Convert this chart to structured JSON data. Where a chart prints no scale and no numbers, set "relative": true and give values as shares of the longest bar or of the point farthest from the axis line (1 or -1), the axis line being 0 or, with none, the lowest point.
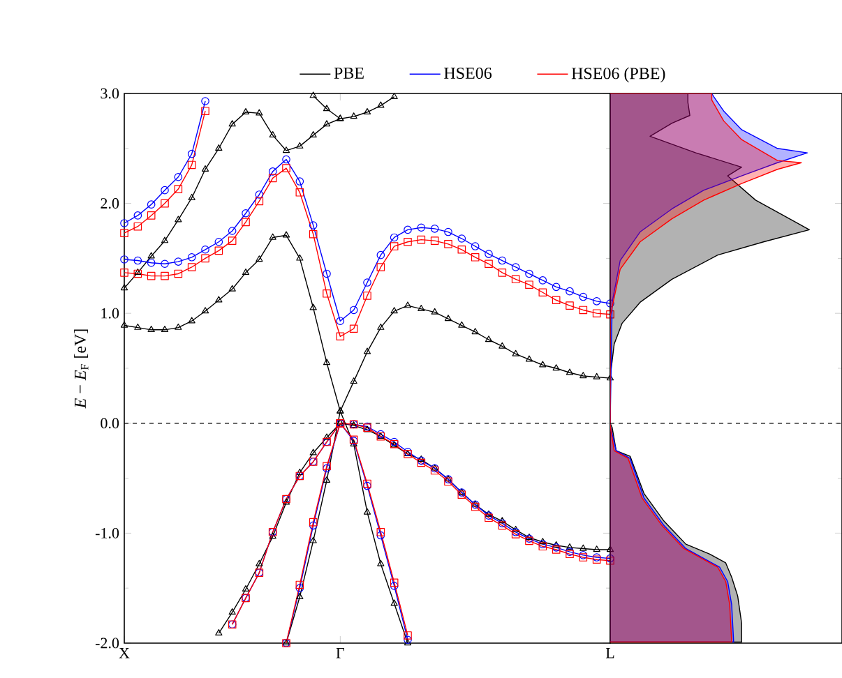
{
  "chart_data": [
    {
      "type": "line",
      "ylim": [
        -2,
        3
      ],
      "categories": [
        "X",
        null,
        null,
        null,
        null,
        null,
        null,
        null,
        null,
        null,
        null,
        null,
        null,
        null,
        null,
        null,
        "Γ",
        null,
        null,
        null,
        null,
        null,
        null,
        null,
        null,
        null,
        null,
        null,
        null,
        null,
        null,
        null,
        null,
        null,
        null,
        null,
        "L"
      ],
      "yticks": [
        {
          "value": -2,
          "label": "-2.0"
        },
        {
          "value": -1,
          "label": "-1.0"
        },
        {
          "value": 0,
          "label": "0.0"
        },
        {
          "value": 1,
          "label": "1.0"
        },
        {
          "value": 2,
          "label": "2.0"
        },
        {
          "value": 3,
          "label": "3.0"
        }
      ],
      "ylabel": "*E* − *E*$_{F}$ [eV]",
      "legend": "top",
      "ref_lines": [
        {
          "axis": "y",
          "value": 0,
          "line_style": "dashed",
          "color": "#000000"
        }
      ],
      "series": [
        {
          "name": "PBE",
          "color": "#000000",
          "marker": "triangle",
          "values": [
            0.89,
            0.87,
            0.85,
            0.85,
            0.87,
            0.93,
            1.02,
            1.12,
            1.22,
            1.37,
            1.49,
            1.69,
            1.71,
            1.5,
            1.05,
            0.55,
            0.11,
            -0.19,
            -0.81,
            -1.28,
            -1.64,
            -2.0,
            null,
            null,
            null,
            null,
            null,
            null,
            null,
            null,
            null,
            null,
            null,
            null,
            null,
            null,
            null
          ]
        },
        {
          "color": "#000000",
          "marker": "triangle",
          "values": [
            null,
            null,
            null,
            null,
            null,
            null,
            null,
            null,
            null,
            null,
            null,
            null,
            -2.0,
            -1.58,
            -1.07,
            -0.52,
            0.11,
            0.38,
            0.65,
            0.87,
            1.02,
            1.07,
            1.04,
            1.01,
            0.95,
            0.89,
            0.83,
            0.76,
            0.7,
            0.63,
            0.58,
            0.53,
            0.5,
            0.46,
            0.43,
            0.42,
            0.41
          ]
        },
        {
          "color": "#000000",
          "marker": "triangle",
          "values": [
            null,
            null,
            null,
            null,
            null,
            null,
            null,
            -1.91,
            -1.72,
            -1.51,
            -1.28,
            -1.03,
            -0.72,
            -0.45,
            -0.27,
            -0.13,
            0,
            -0.02,
            -0.06,
            -0.12,
            -0.2,
            -0.28,
            -0.33,
            -0.41,
            -0.51,
            -0.63,
            -0.74,
            -0.83,
            -0.89,
            -0.97,
            -1.04,
            -1.08,
            -1.11,
            -1.13,
            -1.14,
            -1.15,
            -1.15
          ]
        },
        {
          "color": "#000000",
          "marker": "triangle",
          "values": [
            1.23,
            1.37,
            1.52,
            1.66,
            1.85,
            2.05,
            2.31,
            2.5,
            2.72,
            2.83,
            2.82,
            2.62,
            2.48,
            2.52,
            2.62,
            2.72,
            2.77,
            2.79,
            2.83,
            2.89,
            2.97,
            null,
            null,
            null,
            null,
            null,
            null,
            null,
            null,
            null,
            null,
            null,
            null,
            null,
            null,
            null,
            null
          ]
        },
        {
          "color": "#000000",
          "marker": "triangle",
          "values": [
            null,
            null,
            null,
            null,
            null,
            null,
            null,
            null,
            null,
            null,
            null,
            null,
            null,
            null,
            2.98,
            2.86,
            2.77,
            null,
            null,
            null,
            null,
            null,
            null,
            null,
            null,
            null,
            null,
            null,
            null,
            null,
            null,
            null,
            null,
            null,
            null,
            null,
            null
          ]
        },
        {
          "name": "HSE06",
          "color": "#0000ff",
          "marker": "circle",
          "values": [
            1.49,
            1.48,
            1.46,
            1.45,
            1.47,
            1.51,
            1.58,
            1.65,
            1.75,
            1.91,
            2.08,
            2.29,
            2.4,
            2.2,
            1.8,
            1.36,
            0.93,
            1.03,
            1.28,
            1.53,
            1.69,
            1.76,
            1.78,
            1.77,
            1.74,
            1.68,
            1.61,
            1.54,
            1.48,
            1.42,
            1.36,
            1.3,
            1.24,
            1.2,
            1.15,
            1.11,
            1.09
          ]
        },
        {
          "color": "#0000ff",
          "marker": "circle",
          "values": [
            1.82,
            1.89,
            1.99,
            2.12,
            2.24,
            2.45,
            2.93,
            null,
            null,
            null,
            null,
            null,
            null,
            null,
            null,
            null,
            null,
            null,
            null,
            null,
            null,
            null,
            null,
            null,
            null,
            null,
            null,
            null,
            null,
            null,
            null,
            null,
            null,
            null,
            null,
            null,
            null
          ]
        },
        {
          "color": "#0000ff",
          "marker": "circle",
          "values": [
            null,
            null,
            null,
            null,
            null,
            null,
            null,
            null,
            -1.83,
            -1.59,
            -1.36,
            -0.99,
            -0.69,
            -0.48,
            -0.35,
            -0.17,
            0,
            -0.01,
            -0.03,
            -0.1,
            -0.17,
            -0.26,
            -0.34,
            -0.41,
            -0.51,
            -0.63,
            -0.74,
            -0.84,
            -0.91,
            -0.99,
            -1.05,
            -1.1,
            -1.13,
            -1.17,
            -1.2,
            -1.22,
            -1.23
          ]
        },
        {
          "color": "#0000ff",
          "marker": "circle",
          "values": [
            null,
            null,
            null,
            null,
            null,
            null,
            null,
            null,
            null,
            null,
            null,
            null,
            -2.0,
            -1.5,
            -0.93,
            -0.41,
            0,
            null,
            null,
            null,
            null,
            null,
            null,
            null,
            null,
            null,
            null,
            null,
            null,
            null,
            null,
            null,
            null,
            null,
            null,
            null,
            null
          ]
        },
        {
          "color": "#0000ff",
          "marker": "circle",
          "values": [
            null,
            null,
            null,
            null,
            null,
            null,
            null,
            null,
            null,
            null,
            null,
            null,
            null,
            null,
            null,
            null,
            0,
            -0.16,
            -0.57,
            -1.02,
            -1.48,
            -1.97,
            null,
            null,
            null,
            null,
            null,
            null,
            null,
            null,
            null,
            null,
            null,
            null,
            null,
            null,
            null
          ]
        },
        {
          "name": "HSE06 (PBE)",
          "color": "#ff0000",
          "marker": "square",
          "values": [
            1.37,
            1.36,
            1.34,
            1.34,
            1.36,
            1.42,
            1.5,
            1.57,
            1.66,
            1.83,
            2.02,
            2.23,
            2.32,
            2.1,
            1.72,
            1.18,
            0.79,
            0.86,
            1.16,
            1.42,
            1.61,
            1.65,
            1.67,
            1.66,
            1.63,
            1.58,
            1.51,
            1.45,
            1.37,
            1.31,
            1.26,
            1.19,
            1.12,
            1.07,
            1.03,
            1.0,
            0.99
          ]
        },
        {
          "color": "#ff0000",
          "marker": "square",
          "values": [
            1.73,
            1.79,
            1.89,
            2.0,
            2.13,
            2.35,
            2.84,
            null,
            null,
            null,
            null,
            null,
            null,
            null,
            null,
            null,
            null,
            null,
            null,
            null,
            null,
            null,
            null,
            null,
            null,
            null,
            null,
            null,
            null,
            null,
            null,
            null,
            null,
            null,
            null,
            null,
            null
          ]
        },
        {
          "color": "#ff0000",
          "marker": "square",
          "values": [
            null,
            null,
            null,
            null,
            null,
            null,
            null,
            null,
            -1.83,
            -1.59,
            -1.36,
            -0.99,
            -0.69,
            -0.48,
            -0.35,
            -0.17,
            0,
            -0.01,
            -0.04,
            -0.12,
            -0.19,
            -0.28,
            -0.36,
            -0.43,
            -0.53,
            -0.65,
            -0.76,
            -0.86,
            -0.93,
            -1.01,
            -1.07,
            -1.12,
            -1.15,
            -1.19,
            -1.22,
            -1.24,
            -1.25
          ]
        },
        {
          "color": "#ff0000",
          "marker": "square",
          "values": [
            null,
            null,
            null,
            null,
            null,
            null,
            null,
            null,
            null,
            null,
            null,
            null,
            -2.0,
            -1.47,
            -0.9,
            -0.39,
            0,
            null,
            null,
            null,
            null,
            null,
            null,
            null,
            null,
            null,
            null,
            null,
            null,
            null,
            null,
            null,
            null,
            null,
            null,
            null,
            null
          ]
        },
        {
          "color": "#ff0000",
          "marker": "square",
          "values": [
            null,
            null,
            null,
            null,
            null,
            null,
            null,
            null,
            null,
            null,
            null,
            null,
            null,
            null,
            null,
            null,
            0,
            -0.15,
            -0.55,
            -0.99,
            -1.45,
            -1.93,
            null,
            null,
            null,
            null,
            null,
            null,
            null,
            null,
            null,
            null,
            null,
            null,
            null,
            null,
            null
          ]
        }
      ]
    },
    {
      "type": "area",
      "orientation": "horizontal",
      "relative": true,
      "ylim": [
        -2,
        3
      ],
      "tick_labels": false,
      "yticks": [
        {
          "value": -1,
          "label": null
        },
        {
          "value": 0,
          "label": null
        },
        {
          "value": 1,
          "label": null
        },
        {
          "value": 2,
          "label": null
        }
      ],
      "ref_lines": [
        {
          "axis": "y",
          "value": 0,
          "line_style": "dashed",
          "color": "#000000"
        }
      ],
      "series": [
        {
          "color": "#000000",
          "x": [
            -1.99,
            -1.82,
            -1.57,
            -1.4,
            -1.27,
            -1.19,
            -1.1,
            -0.89,
            -0.64,
            -0.3,
            -0.25,
            -0.04,
            0,
            0.42,
            0.72,
            0.91,
            1.1,
            1.31,
            1.53,
            1.65,
            1.76,
            1.82,
            2.03,
            2.25,
            2.33,
            2.46,
            2.61,
            2.73,
            2.8,
            2.92,
            3.0
          ],
          "values": [
            0.66,
            0.66,
            0.64,
            0.61,
            0.58,
            0.5,
            0.38,
            0.27,
            0.17,
            0.1,
            0.03,
            0.01,
            0,
            0,
            0.02,
            0.06,
            0.15,
            0.31,
            0.54,
            0.77,
            1.0,
            0.94,
            0.73,
            0.59,
            0.66,
            0.43,
            0.2,
            0.31,
            0.4,
            0.39,
            0.39
          ]
        },
        {
          "color": "#0000ff",
          "x": [
            -1.99,
            -1.65,
            -1.44,
            -1.31,
            -1.23,
            -1.14,
            -0.93,
            -0.68,
            -0.32,
            -0.25,
            -0.02,
            0,
            1.1,
            1.48,
            1.74,
            1.95,
            2.12,
            2.25,
            2.37,
            2.46,
            2.5,
            2.67,
            2.84,
            2.97,
            3.0
          ],
          "values": [
            0.62,
            0.61,
            0.59,
            0.55,
            0.47,
            0.38,
            0.27,
            0.17,
            0.1,
            0.03,
            0,
            0,
            0.01,
            0.05,
            0.15,
            0.31,
            0.47,
            0.66,
            0.84,
            0.99,
            0.84,
            0.66,
            0.57,
            0.52,
            0.51
          ]
        },
        {
          "color": "#ff0000",
          "x": [
            -1.99,
            -1.65,
            -1.44,
            -1.31,
            -1.23,
            -1.14,
            -0.93,
            -0.68,
            -0.32,
            -0.25,
            -0.02,
            0,
            0.97,
            1.4,
            1.65,
            1.86,
            2.03,
            2.18,
            2.31,
            2.37,
            2.39,
            2.58,
            2.75,
            2.94,
            3.0
          ],
          "values": [
            0.61,
            0.6,
            0.58,
            0.54,
            0.46,
            0.37,
            0.26,
            0.16,
            0.09,
            0.02,
            0,
            0,
            0,
            0.05,
            0.15,
            0.31,
            0.47,
            0.66,
            0.84,
            0.96,
            0.84,
            0.66,
            0.57,
            0.51,
            0.51
          ]
        }
      ]
    }
  ]
}
